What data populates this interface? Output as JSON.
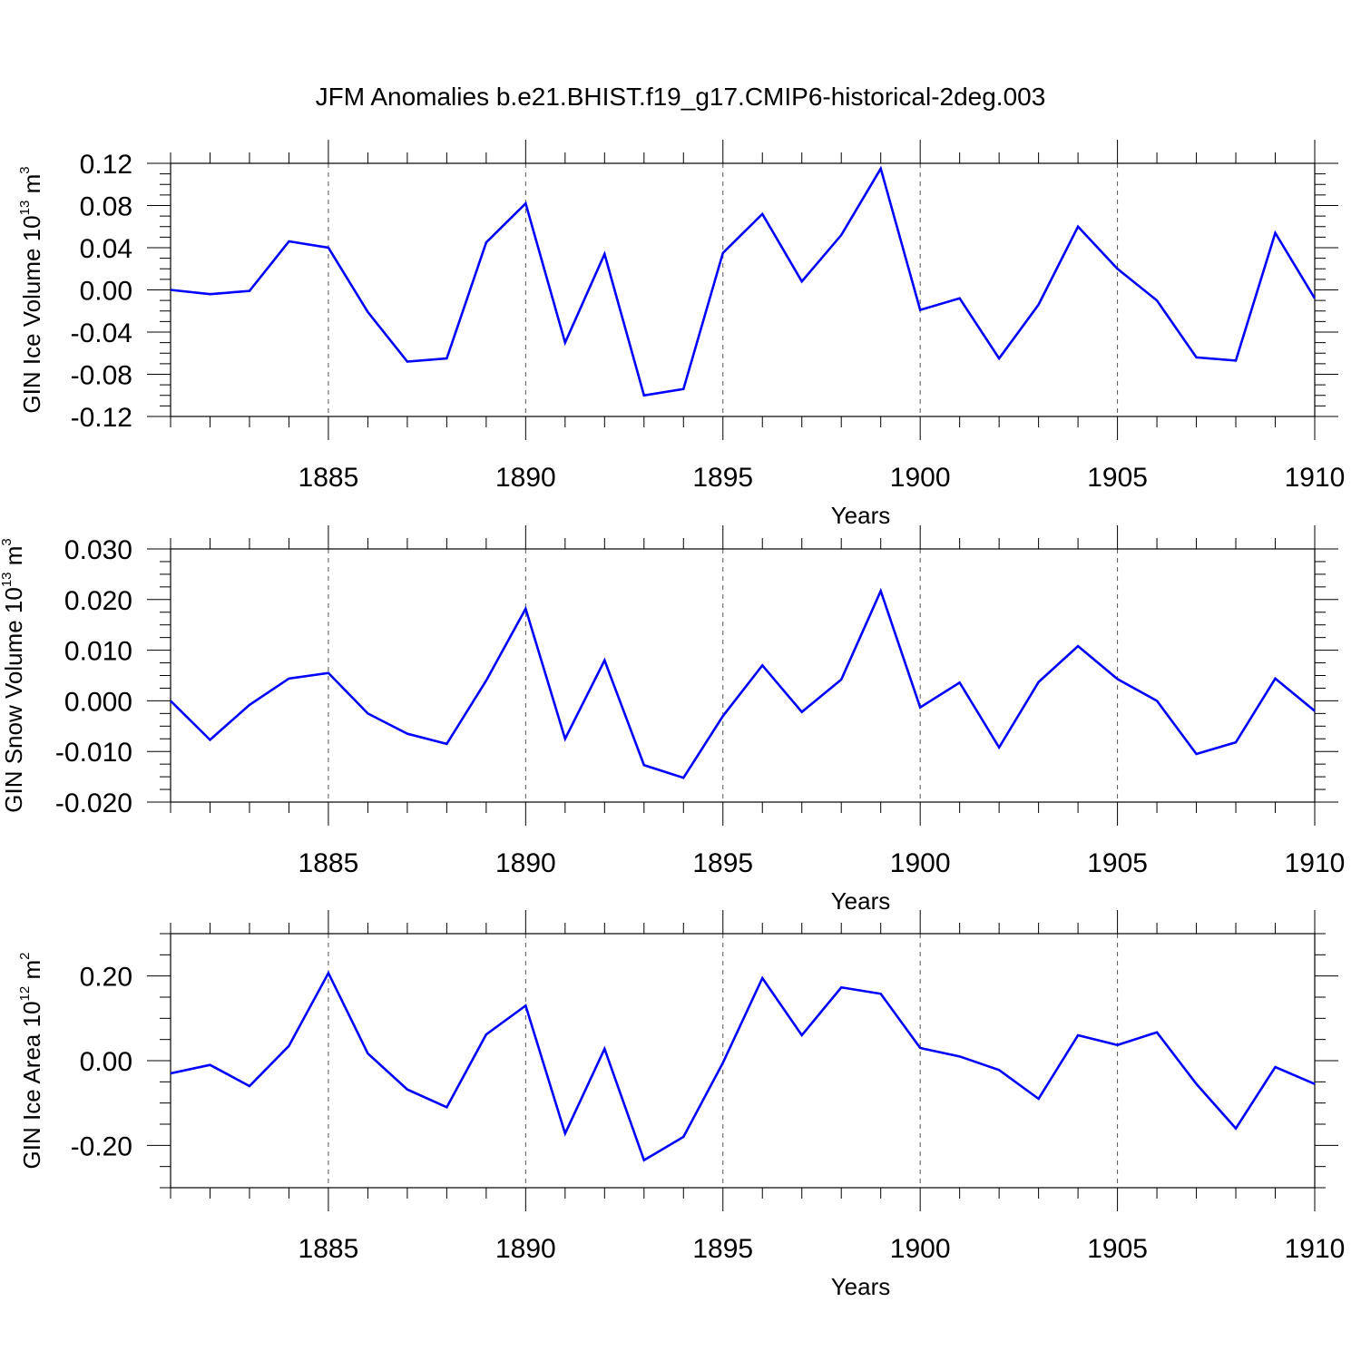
{
  "title": "JFM Anomalies b.e21.BHIST.f19_g17.CMIP6-historical-2deg.003",
  "colors": {
    "line": "#0000ff",
    "axis": "#000000",
    "grid": "#555555"
  },
  "chart_data": [
    {
      "type": "line",
      "ylabel": {
        "main": "GIN Ice Volume 10",
        "exp": "13",
        "unit": " m",
        "unit_exp": "3"
      },
      "xlabel": "Years",
      "xlim": [
        1881,
        1910
      ],
      "ylim": [
        -0.12,
        0.12
      ],
      "yticks": [
        -0.12,
        -0.08,
        -0.04,
        0.0,
        0.04,
        0.08,
        0.12
      ],
      "ytick_labels": [
        "-0.12",
        "-0.08",
        "-0.04",
        "0.00",
        "0.04",
        "0.08",
        "0.12"
      ],
      "xticks": [
        1885,
        1890,
        1895,
        1900,
        1905,
        1910
      ],
      "xtick_labels": [
        "1885",
        "1890",
        "1895",
        "1900",
        "1905",
        "1910"
      ],
      "grid": "vertical dashed at major x ticks",
      "series": [
        {
          "x": [
            1881,
            1882,
            1883,
            1884,
            1885,
            1886,
            1887,
            1888,
            1889,
            1890,
            1891,
            1892,
            1893,
            1894,
            1895,
            1896,
            1897,
            1898,
            1899,
            1900,
            1901,
            1902,
            1903,
            1904,
            1905,
            1906,
            1907,
            1908,
            1909,
            1910
          ],
          "values": [
            0.0,
            -0.004,
            -0.001,
            0.046,
            0.04,
            -0.021,
            -0.068,
            -0.065,
            0.045,
            0.082,
            -0.05,
            0.034,
            -0.1,
            -0.094,
            0.035,
            0.072,
            0.008,
            0.052,
            0.115,
            -0.019,
            -0.008,
            -0.065,
            -0.014,
            0.06,
            0.02,
            -0.01,
            -0.064,
            -0.067,
            0.054,
            -0.008
          ]
        }
      ]
    },
    {
      "type": "line",
      "ylabel": {
        "main": "GIN Snow Volume 10",
        "exp": "13",
        "unit": " m",
        "unit_exp": "3"
      },
      "xlabel": "Years",
      "xlim": [
        1881,
        1910
      ],
      "ylim": [
        -0.02,
        0.03
      ],
      "yticks": [
        -0.02,
        -0.01,
        0.0,
        0.01,
        0.02,
        0.03
      ],
      "ytick_labels": [
        "-0.020",
        "-0.010",
        "0.000",
        "0.010",
        "0.020",
        "0.030"
      ],
      "xticks": [
        1885,
        1890,
        1895,
        1900,
        1905,
        1910
      ],
      "xtick_labels": [
        "1885",
        "1890",
        "1895",
        "1900",
        "1905",
        "1910"
      ],
      "grid": "vertical dashed at major x ticks",
      "series": [
        {
          "x": [
            1881,
            1882,
            1883,
            1884,
            1885,
            1886,
            1887,
            1888,
            1889,
            1890,
            1891,
            1892,
            1893,
            1894,
            1895,
            1896,
            1897,
            1898,
            1899,
            1900,
            1901,
            1902,
            1903,
            1904,
            1905,
            1906,
            1907,
            1908,
            1909,
            1910
          ],
          "values": [
            0.0,
            -0.0077,
            -0.0008,
            0.0044,
            0.0055,
            -0.0025,
            -0.0065,
            -0.0085,
            0.004,
            0.0182,
            -0.0075,
            0.008,
            -0.0127,
            -0.0152,
            -0.003,
            0.007,
            -0.0022,
            0.0042,
            0.0217,
            -0.0013,
            0.0036,
            -0.0092,
            0.0037,
            0.0108,
            0.0043,
            0.0,
            -0.0105,
            -0.0082,
            0.0044,
            -0.002
          ]
        }
      ]
    },
    {
      "type": "line",
      "ylabel": {
        "main": "GIN Ice Area 10",
        "exp": "12",
        "unit": " m",
        "unit_exp": "2"
      },
      "xlabel": "Years",
      "xlim": [
        1881,
        1910
      ],
      "ylim": [
        -0.3,
        0.3
      ],
      "yticks": [
        -0.2,
        0.0,
        0.2
      ],
      "ytick_labels": [
        "-0.20",
        "0.00",
        "0.20"
      ],
      "xticks": [
        1885,
        1890,
        1895,
        1900,
        1905,
        1910
      ],
      "xtick_labels": [
        "1885",
        "1890",
        "1895",
        "1900",
        "1905",
        "1910"
      ],
      "grid": "vertical dashed at major x ticks",
      "series": [
        {
          "x": [
            1881,
            1882,
            1883,
            1884,
            1885,
            1886,
            1887,
            1888,
            1889,
            1890,
            1891,
            1892,
            1893,
            1894,
            1895,
            1896,
            1897,
            1898,
            1899,
            1900,
            1901,
            1902,
            1903,
            1904,
            1905,
            1906,
            1907,
            1908,
            1909,
            1910
          ],
          "values": [
            -0.03,
            -0.01,
            -0.06,
            0.035,
            0.207,
            0.017,
            -0.068,
            -0.11,
            0.062,
            0.13,
            -0.172,
            0.028,
            -0.235,
            -0.18,
            -0.005,
            0.195,
            0.06,
            0.173,
            0.158,
            0.03,
            0.01,
            -0.022,
            -0.09,
            0.06,
            0.037,
            0.067,
            -0.055,
            -0.16,
            -0.015,
            -0.055
          ]
        }
      ]
    }
  ]
}
